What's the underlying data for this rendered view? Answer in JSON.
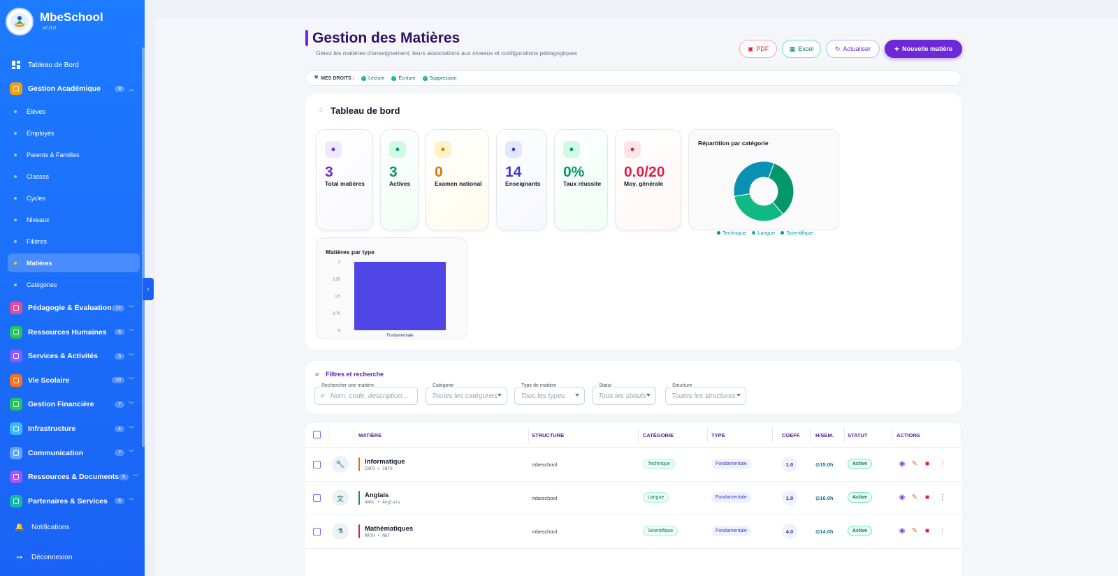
{
  "app": {
    "name": "MbeSchool",
    "version": "v2.0.0"
  },
  "sidebar": {
    "dashboard": "Tableau de Bord",
    "groups": [
      {
        "label": "Gestion Académique",
        "badge": "9",
        "color": "#f59e0b",
        "icon": "graduation-cap-icon"
      },
      {
        "label": "Pédagogie & Évaluation",
        "badge": "12",
        "color": "#ec4899",
        "icon": "assessment-icon"
      },
      {
        "label": "Ressources Humaines",
        "badge": "6",
        "color": "#22c55e",
        "icon": "briefcase-icon"
      },
      {
        "label": "Services & Activités",
        "badge": "3",
        "color": "#8b5cf6",
        "icon": "services-icon"
      },
      {
        "label": "Vie Scolaire",
        "badge": "10",
        "color": "#f97316",
        "icon": "school-life-icon"
      },
      {
        "label": "Gestion Financière",
        "badge": "7",
        "color": "#22c55e",
        "icon": "finance-icon"
      },
      {
        "label": "Infrastructure",
        "badge": "4",
        "color": "#38bdf8",
        "icon": "building-icon"
      },
      {
        "label": "Communication",
        "badge": "7",
        "color": "#60a5fa",
        "icon": "mail-icon"
      },
      {
        "label": "Ressources & Documents",
        "badge": "5",
        "color": "#a855f7",
        "icon": "folder-icon"
      },
      {
        "label": "Partenaires & Services",
        "badge": "6",
        "color": "#14b8a6",
        "icon": "handshake-icon"
      }
    ],
    "sub_items": [
      "Élèves",
      "Employés",
      "Parents & Familles",
      "Classes",
      "Cycles",
      "Niveaux",
      "Filières",
      "Matières",
      "Catégories"
    ],
    "active_sub": "Matières",
    "notifications": "Notifications",
    "logout": "Déconnexion"
  },
  "header": {
    "title": "Gestion des Matières",
    "subtitle": "Gérez les matières d'enseignement, leurs associations aux niveaux et configurations pédagogiques",
    "buttons": {
      "pdf": "PDF",
      "excel": "Excel",
      "refresh": "Actualiser",
      "new": "Nouvelle matière"
    }
  },
  "permissions": {
    "label": "MES DROITS :",
    "items": [
      "Lecture",
      "Écriture",
      "Suppression"
    ]
  },
  "dashboard": {
    "title": "Tableau de bord",
    "stats": [
      {
        "value": "3",
        "label": "Total matières",
        "color": "#6d28d9",
        "bg": "#ede9fe",
        "icon": "loader-icon"
      },
      {
        "value": "3",
        "label": "Actives",
        "color": "#059669",
        "bg": "#d1fae5",
        "icon": "check-circle-icon"
      },
      {
        "value": "0",
        "label": "Examen national",
        "color": "#d97706",
        "bg": "#fef3c7",
        "icon": "clipboard-check-icon"
      },
      {
        "value": "14",
        "label": "Enseignants",
        "color": "#4338ca",
        "bg": "#e0e7ff",
        "icon": "users-icon"
      },
      {
        "value": "0%",
        "label": "Taux réussite",
        "color": "#059669",
        "bg": "#d1fae5",
        "icon": "flag-icon"
      },
      {
        "value": "0.0/20",
        "label": "Moy. générale",
        "color": "#e11d48",
        "bg": "#ffe4e6",
        "icon": "trend-icon"
      }
    ]
  },
  "chart_data": [
    {
      "type": "pie",
      "title": "Répartition par catégorie",
      "categories": [
        "Technique",
        "Langue",
        "Scientifique"
      ],
      "values": [
        1,
        1,
        1
      ],
      "colors": [
        "#059669",
        "#10b981",
        "#0891b2"
      ],
      "donut": true,
      "legend": "bottom"
    },
    {
      "type": "bar",
      "title": "Matières par type",
      "categories": [
        "Fondamentale"
      ],
      "values": [
        3
      ],
      "ylim": [
        0,
        3
      ],
      "yticks": [
        "3",
        "2,25",
        "1,5",
        "0,75",
        "0"
      ],
      "color": "#4f46e5"
    }
  ],
  "filters": {
    "title": "Filtres et recherche",
    "search": {
      "label": "Rechercher une matière",
      "placeholder": "Nom, code, description..."
    },
    "selects": [
      {
        "label": "Catégorie",
        "value": "Toutes les catégories"
      },
      {
        "label": "Type de matière",
        "value": "Tous les types"
      },
      {
        "label": "Statut",
        "value": "Tous les statuts"
      },
      {
        "label": "Structure",
        "value": "Toutes les structures"
      }
    ]
  },
  "table": {
    "headers": [
      "MATIÈRE",
      "STRUCTURE",
      "CATÉGORIE",
      "TYPE",
      "COEFF.",
      "H/SEM.",
      "STATUT",
      "ACTIONS"
    ],
    "rows": [
      {
        "name": "Informatique",
        "code": "INFO • INFO",
        "structure": "mbeschool",
        "category": "Technique",
        "type": "Fondamentale",
        "coeff": "1.0",
        "hours": "15.0h",
        "status": "Active",
        "bar": "#d97706",
        "icon": "wrench-icon",
        "glyph": "🔧"
      },
      {
        "name": "Anglais",
        "code": "ANGL • Anglais",
        "structure": "mbeschool",
        "category": "Langue",
        "type": "Fondamentale",
        "coeff": "1.0",
        "hours": "16.0h",
        "status": "Active",
        "bar": "#059669",
        "icon": "translate-icon",
        "glyph": "文"
      },
      {
        "name": "Mathématiques",
        "code": "MATH • MAT",
        "structure": "mbeschool",
        "category": "Scientifique",
        "type": "Fondamentale",
        "coeff": "4.0",
        "hours": "14.0h",
        "status": "Active",
        "bar": "#e11d48",
        "icon": "flask-icon",
        "glyph": "⚗"
      }
    ]
  }
}
